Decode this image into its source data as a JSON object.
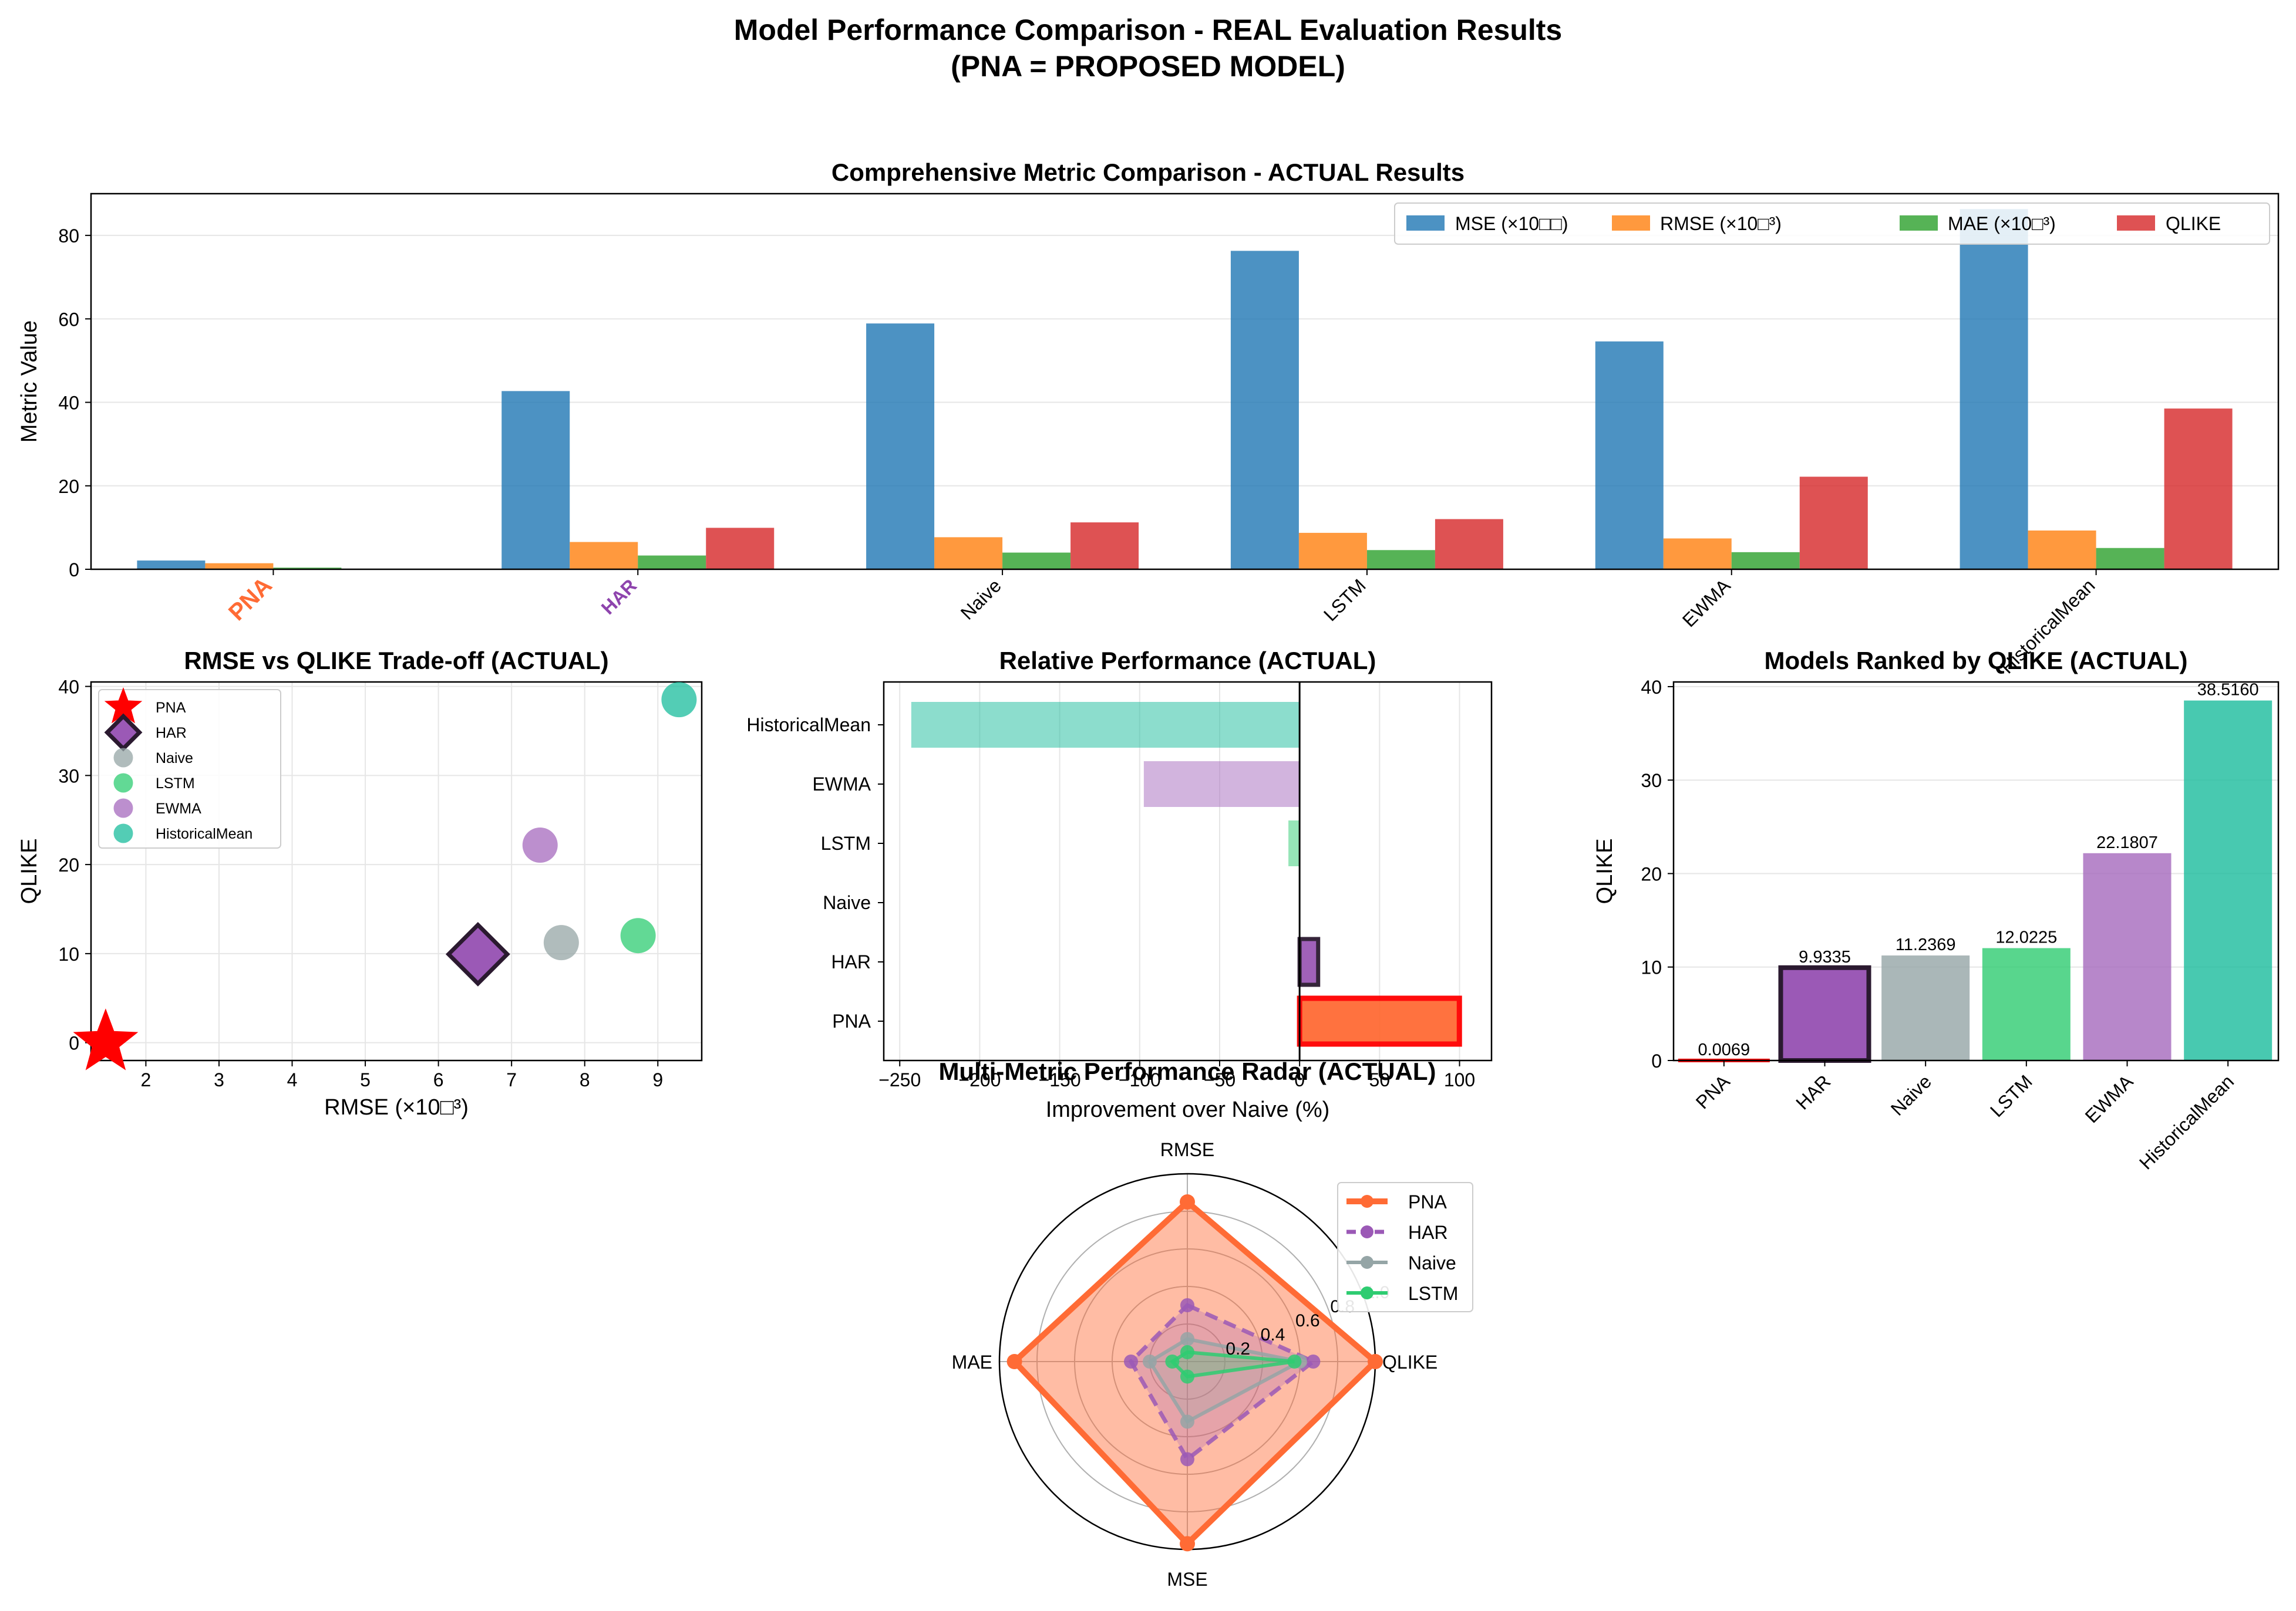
{
  "title_line1": "Model Performance Comparison - REAL Evaluation Results",
  "title_line2": "(PNA = PROPOSED MODEL)",
  "colors": {
    "PNA": "#ff6b35",
    "HAR": "#9b59b6",
    "Naive": "#95a5a6",
    "LSTM": "#2ecc71",
    "EWMA": "#a569bd",
    "HistoricalMean": "#1abc9c",
    "mse": "#1f77b4",
    "rmse": "#ff7f0e",
    "mae": "#2ca02c",
    "qlike": "#d62728",
    "pna_scatter": "#ff0000",
    "har_label": "#8e44ad"
  },
  "chart_data": [
    {
      "id": "metric",
      "type": "bar",
      "title": "Comprehensive Metric Comparison - ACTUAL Results",
      "ylabel": "Metric Value",
      "categories": [
        "PNA",
        "HAR",
        "Naive",
        "LSTM",
        "EWMA",
        "HistoricalMean"
      ],
      "series": [
        {
          "name": "MSE (×10□□)",
          "values": [
            2.1,
            42.7,
            58.9,
            76.3,
            54.6,
            86.3
          ]
        },
        {
          "name": "RMSE (×10□³)",
          "values": [
            1.45,
            6.54,
            7.68,
            8.73,
            7.39,
            9.29
          ]
        },
        {
          "name": "MAE (×10□³)",
          "values": [
            0.4,
            3.3,
            4.0,
            4.6,
            4.1,
            5.1
          ]
        },
        {
          "name": "QLIKE",
          "values": [
            0.0069,
            9.9335,
            11.2369,
            12.0225,
            22.1807,
            38.516
          ]
        }
      ],
      "ylim": [
        0,
        90
      ],
      "yticks": [
        "0",
        "20",
        "40",
        "60",
        "80"
      ],
      "legend": "top-right",
      "grid": true
    },
    {
      "id": "scatter",
      "type": "scatter",
      "title": "RMSE vs QLIKE Trade-off (ACTUAL)",
      "xlabel": "RMSE (×10□³)",
      "ylabel": "QLIKE",
      "points": [
        {
          "name": "PNA",
          "x": 1.45,
          "y": 0.0069,
          "marker": "star"
        },
        {
          "name": "HAR",
          "x": 6.54,
          "y": 9.9335,
          "marker": "diamond"
        },
        {
          "name": "Naive",
          "x": 7.68,
          "y": 11.2369,
          "marker": "circle"
        },
        {
          "name": "LSTM",
          "x": 8.73,
          "y": 12.0225,
          "marker": "circle"
        },
        {
          "name": "EWMA",
          "x": 7.39,
          "y": 22.1807,
          "marker": "circle"
        },
        {
          "name": "HistoricalMean",
          "x": 9.29,
          "y": 38.516,
          "marker": "circle"
        }
      ],
      "xlim": [
        1.25,
        9.6
      ],
      "ylim": [
        -2,
        40.5
      ],
      "xticks": [
        "2",
        "3",
        "4",
        "5",
        "6",
        "7",
        "8",
        "9"
      ],
      "yticks": [
        "0",
        "10",
        "20",
        "30",
        "40"
      ],
      "legend": "upper-left",
      "grid": true
    },
    {
      "id": "relative",
      "type": "bar",
      "orientation": "horizontal",
      "title": "Relative Performance (ACTUAL)",
      "xlabel": "Improvement over Naive (%)",
      "categories": [
        "PNA",
        "HAR",
        "Naive",
        "LSTM",
        "EWMA",
        "HistoricalMean"
      ],
      "values": [
        99.9,
        11.6,
        0,
        -7.0,
        -97.4,
        -242.8
      ],
      "xlim": [
        -260,
        120
      ],
      "xticks": [
        "−250",
        "−200",
        "−150",
        "−100",
        "−50",
        "0",
        "50",
        "100"
      ],
      "grid": true
    },
    {
      "id": "ranked",
      "type": "bar",
      "title": "Models Ranked by QLIKE (ACTUAL)",
      "ylabel": "QLIKE",
      "categories": [
        "PNA",
        "HAR",
        "Naive",
        "LSTM",
        "EWMA",
        "HistoricalMean"
      ],
      "values": [
        0.0069,
        9.9335,
        11.2369,
        12.0225,
        22.1807,
        38.516
      ],
      "labels": [
        "0.0069",
        "9.9335",
        "11.2369",
        "12.0225",
        "22.1807",
        "38.5160"
      ],
      "ylim": [
        0,
        40.5
      ],
      "yticks": [
        "0",
        "10",
        "20",
        "30",
        "40"
      ],
      "grid": true
    },
    {
      "id": "radar",
      "type": "radar",
      "title": "Multi-Metric Performance Radar (ACTUAL)",
      "axes": [
        "RMSE",
        "QLIKE",
        "MSE",
        "MAE"
      ],
      "series": [
        {
          "name": "PNA",
          "values": [
            0.85,
            1.0,
            0.97,
            0.92
          ]
        },
        {
          "name": "HAR",
          "values": [
            0.3,
            0.67,
            0.52,
            0.3
          ]
        },
        {
          "name": "Naive",
          "values": [
            0.12,
            0.6,
            0.32,
            0.2
          ]
        },
        {
          "name": "LSTM",
          "values": [
            0.05,
            0.57,
            0.08,
            0.08
          ]
        }
      ],
      "rticks": [
        "0.2",
        "0.4",
        "0.6",
        "0.8",
        "1.0"
      ],
      "legend": "upper-right"
    }
  ]
}
